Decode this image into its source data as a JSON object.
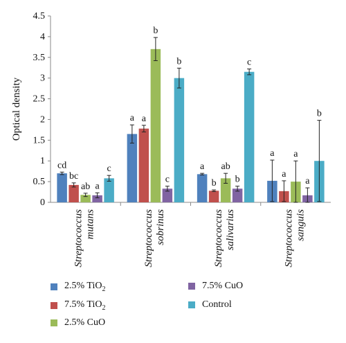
{
  "chart_data": {
    "type": "bar",
    "ylabel": "Optical density",
    "ylim": [
      0,
      4.5
    ],
    "yticks": [
      "0",
      "0.5",
      "1",
      "1.5",
      "2",
      "2.5",
      "3",
      "3.5",
      "4",
      "4.5"
    ],
    "categories": [
      [
        "Streptococcus",
        "mutans"
      ],
      [
        "Streptococcus",
        "sobrinus"
      ],
      [
        "Streptococcus",
        "salivarius"
      ],
      [
        "Streptococcus",
        "sanguis"
      ]
    ],
    "series": [
      {
        "name": "2.5% TiO2",
        "color": "#4F81BD",
        "values": [
          0.7,
          1.65,
          0.68,
          0.52
        ],
        "errors": [
          0.03,
          0.22,
          0.02,
          0.5
        ],
        "labels": [
          "cd",
          "a",
          "a",
          "a"
        ]
      },
      {
        "name": "7.5% TiO2",
        "color": "#C0504D",
        "values": [
          0.42,
          1.78,
          0.28,
          0.27
        ],
        "errors": [
          0.05,
          0.08,
          0.02,
          0.25
        ],
        "labels": [
          "bc",
          "a",
          "b",
          "a"
        ]
      },
      {
        "name": "2.5% CuO",
        "color": "#9BBB59",
        "values": [
          0.18,
          3.7,
          0.58,
          0.5
        ],
        "errors": [
          0.04,
          0.28,
          0.12,
          0.5
        ],
        "labels": [
          "ab",
          "b",
          "ab",
          "a"
        ]
      },
      {
        "name": "7.5% CuO",
        "color": "#8064A2",
        "values": [
          0.17,
          0.33,
          0.33,
          0.17
        ],
        "errors": [
          0.06,
          0.06,
          0.06,
          0.18
        ],
        "labels": [
          "a",
          "c",
          "b",
          "a"
        ]
      },
      {
        "name": "Control",
        "color": "#4BACC6",
        "values": [
          0.58,
          3.0,
          3.15,
          1.0
        ],
        "errors": [
          0.07,
          0.24,
          0.07,
          0.98
        ],
        "labels": [
          "c",
          "b",
          "c",
          "b"
        ]
      }
    ]
  },
  "legend": [
    {
      "base": "2.5% TiO",
      "sub": "2"
    },
    {
      "base": "7.5% TiO",
      "sub": "2"
    },
    {
      "base": "2.5% CuO",
      "sub": ""
    },
    {
      "base": "7.5% CuO",
      "sub": ""
    },
    {
      "base": "Control",
      "sub": ""
    }
  ]
}
